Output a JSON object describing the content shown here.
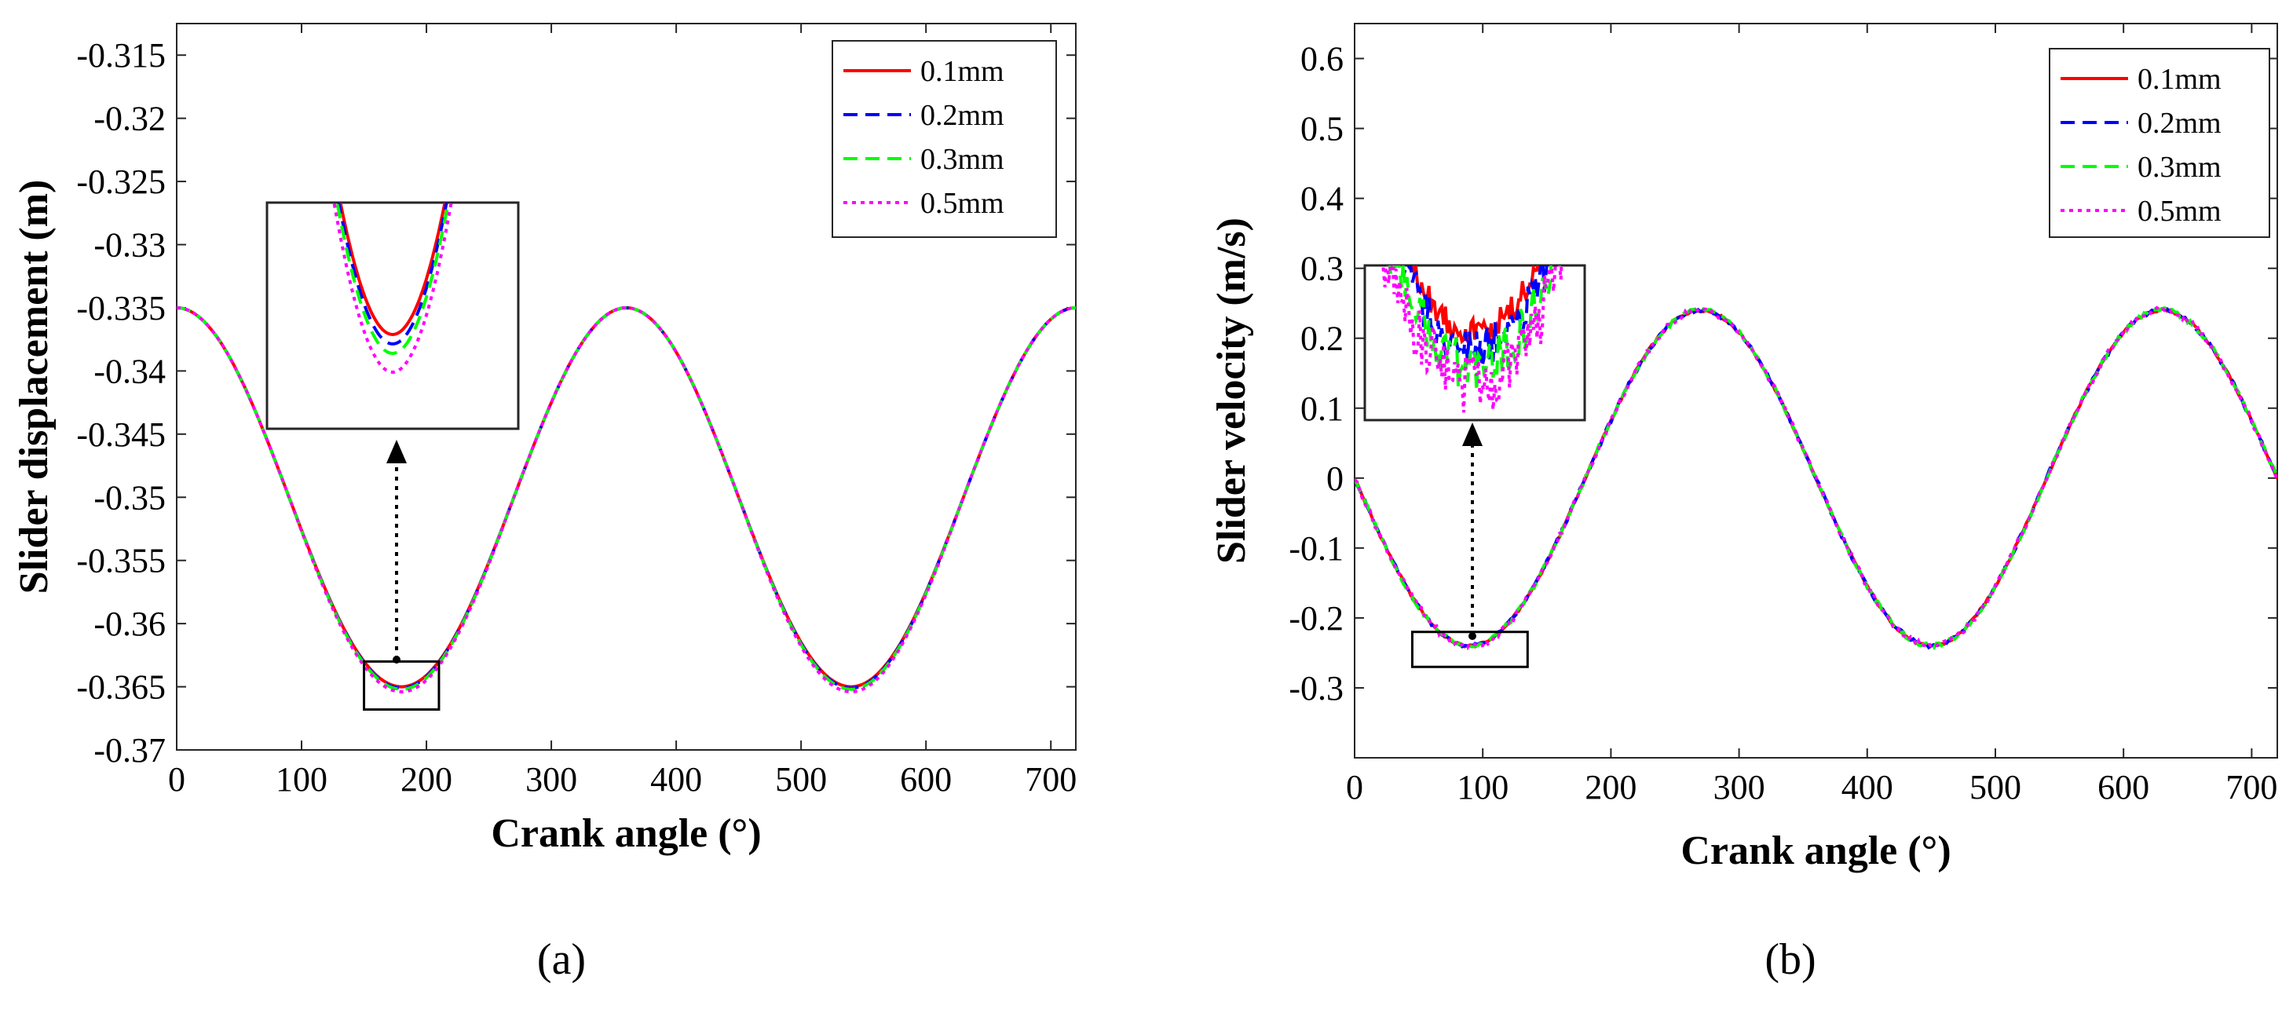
{
  "chart_data": [
    {
      "type": "line",
      "panel_label": "(a)",
      "xlabel": "Crank angle (°)",
      "ylabel": "Slider displacement (m)",
      "xlim": [
        0,
        720
      ],
      "ylim": [
        -0.37,
        -0.3125
      ],
      "xticks": [
        0,
        100,
        200,
        300,
        400,
        500,
        600,
        700
      ],
      "xtick_labels": [
        "0",
        "100",
        "200",
        "300",
        "400",
        "500",
        "600",
        "700"
      ],
      "yticks": [
        -0.37,
        -0.365,
        -0.36,
        -0.355,
        -0.35,
        -0.345,
        -0.34,
        -0.335,
        -0.33,
        -0.325,
        -0.32,
        -0.315
      ],
      "ytick_labels": [
        "-0.37",
        "-0.365",
        "-0.36",
        "-0.355",
        "-0.35",
        "-0.345",
        "-0.34",
        "-0.335",
        "-0.33",
        "-0.325",
        "-0.32",
        "-0.315"
      ],
      "legend": "top-right",
      "model": "displacement: y = mean + amp*cos(x), minima deepen slightly with clearance",
      "series": [
        {
          "name": "0.1mm",
          "color": "#ff0000",
          "style": "solid",
          "mean": -0.35,
          "amp": 0.015,
          "extra_min": 0.0
        },
        {
          "name": "0.2mm",
          "color": "#0000ff",
          "style": "dashed",
          "mean": -0.35,
          "amp": 0.015,
          "extra_min": 0.0001
        },
        {
          "name": "0.3mm",
          "color": "#00ff00",
          "style": "dashed",
          "mean": -0.35,
          "amp": 0.015,
          "extra_min": 0.0002
        },
        {
          "name": "0.5mm",
          "color": "#ff00ff",
          "style": "dotted",
          "mean": -0.35,
          "amp": 0.015,
          "extra_min": 0.0004
        }
      ],
      "highlight_range": {
        "x": [
          150,
          210
        ],
        "y": [
          -0.3668,
          -0.363
        ]
      },
      "annotation": "zoomed inset of trough near 180°"
    },
    {
      "type": "line",
      "panel_label": "(b)",
      "xlabel": "Crank angle (°)",
      "ylabel": "Slider velocity (m/s)",
      "xlim": [
        0,
        720
      ],
      "ylim": [
        -0.4,
        0.65
      ],
      "xticks": [
        0,
        100,
        200,
        300,
        400,
        500,
        600,
        700
      ],
      "xtick_labels": [
        "0",
        "100",
        "200",
        "300",
        "400",
        "500",
        "600",
        "700"
      ],
      "yticks": [
        -0.3,
        -0.2,
        -0.1,
        0,
        0.1,
        0.2,
        0.3,
        0.4,
        0.5,
        0.6
      ],
      "ytick_labels": [
        "-0.3",
        "-0.2",
        "-0.1",
        "0",
        "0.1",
        "0.2",
        "0.3",
        "0.4",
        "0.5",
        "0.6"
      ],
      "legend": "top-right",
      "model": "velocity: y = -amp*sin(x) with small clearance noise",
      "series": [
        {
          "name": "0.1mm",
          "color": "#ff0000",
          "style": "solid",
          "amp": 0.24,
          "noise": 0.004
        },
        {
          "name": "0.2mm",
          "color": "#0000ff",
          "style": "dashed",
          "amp": 0.24,
          "noise": 0.006
        },
        {
          "name": "0.3mm",
          "color": "#00ff00",
          "style": "dashed",
          "amp": 0.24,
          "noise": 0.007
        },
        {
          "name": "0.5mm",
          "color": "#ff00ff",
          "style": "dotted",
          "amp": 0.24,
          "noise": 0.009
        }
      ],
      "highlight_range": {
        "x": [
          45,
          135
        ],
        "y": [
          -0.27,
          -0.22
        ]
      },
      "annotation": "zoomed inset of trough near 90°"
    }
  ]
}
